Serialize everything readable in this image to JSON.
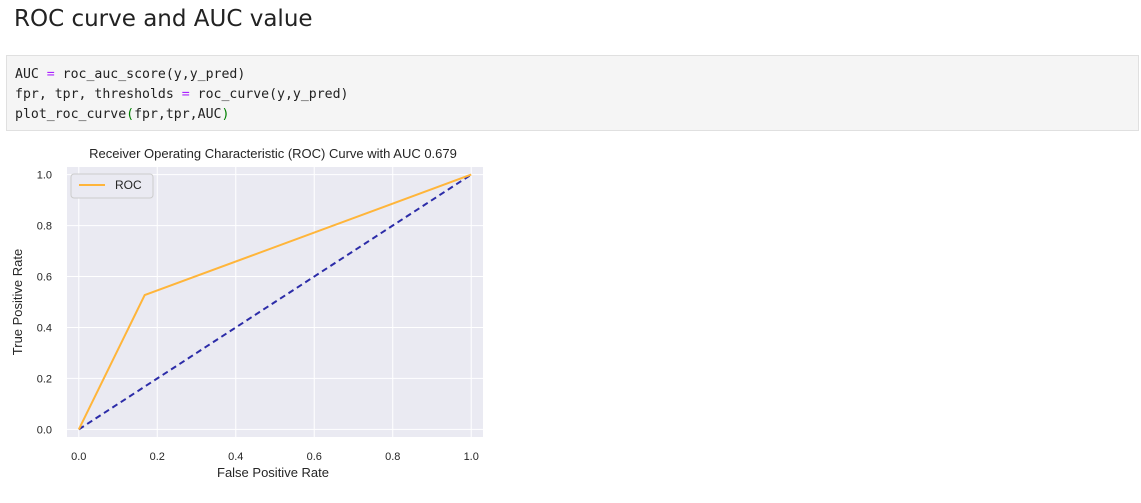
{
  "notebook": {
    "heading": "ROC curve and AUC value",
    "code_cell": {
      "lines": [
        [
          {
            "t": "AUC ",
            "c": ""
          },
          {
            "t": "=",
            "c": "op"
          },
          {
            "t": " roc_auc_score(y,y_pred)",
            "c": ""
          }
        ],
        [
          {
            "t": "fpr, tpr, thresholds ",
            "c": ""
          },
          {
            "t": "=",
            "c": "op"
          },
          {
            "t": " roc_curve(y,y_pred)",
            "c": ""
          }
        ],
        [
          {
            "t": "plot_roc_curve",
            "c": ""
          },
          {
            "t": "(",
            "c": "paren"
          },
          {
            "t": "fpr,tpr,AUC",
            "c": ""
          },
          {
            "t": ")",
            "c": "paren"
          }
        ]
      ]
    }
  },
  "chart_data": {
    "type": "line",
    "title": "Receiver Operating Characteristic (ROC) Curve with AUC 0.679",
    "xlabel": "False Positive Rate",
    "ylabel": "True Positive Rate",
    "xlim": [
      -0.03,
      1.03
    ],
    "ylim": [
      -0.03,
      1.03
    ],
    "xticks": [
      0.0,
      0.2,
      0.4,
      0.6,
      0.8,
      1.0
    ],
    "yticks": [
      0.0,
      0.2,
      0.4,
      0.6,
      0.8,
      1.0
    ],
    "xtick_labels": [
      "0.0",
      "0.2",
      "0.4",
      "0.6",
      "0.8",
      "1.0"
    ],
    "ytick_labels": [
      "0.0",
      "0.2",
      "0.4",
      "0.6",
      "0.8",
      "1.0"
    ],
    "grid": true,
    "legend_position": "top-left",
    "series": [
      {
        "name": "ROC",
        "color": "#ffb53a",
        "style": "solid",
        "x": [
          0.0,
          0.168,
          1.0
        ],
        "y": [
          0.0,
          0.527,
          1.0
        ]
      },
      {
        "color": "#2c2ca8",
        "style": "dashed",
        "x": [
          0.0,
          1.0
        ],
        "y": [
          0.0,
          1.0
        ]
      }
    ],
    "colors": {
      "plot_background": "#eaeaf2",
      "grid": "#ffffff"
    }
  }
}
